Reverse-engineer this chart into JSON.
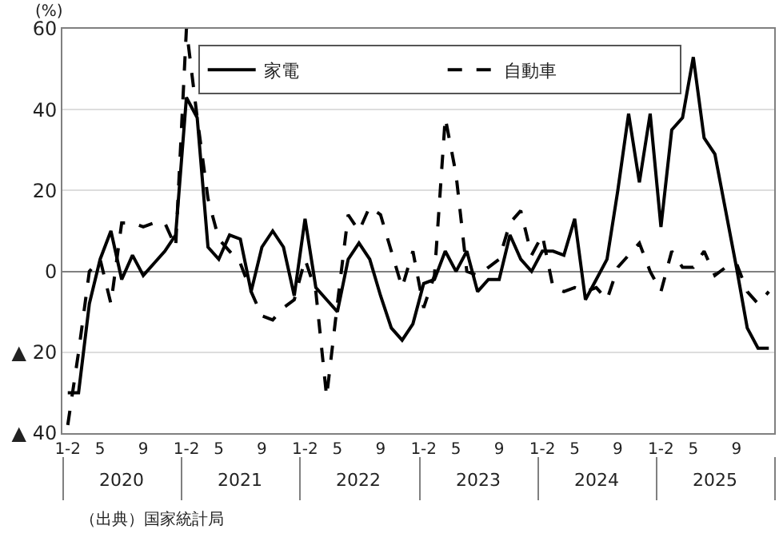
{
  "chart_data": {
    "type": "line",
    "ylabel": "(%)",
    "categories": [
      "1-2",
      null,
      null,
      "5",
      null,
      null,
      null,
      "9",
      null,
      null,
      null,
      "1-2",
      null,
      null,
      "5",
      null,
      null,
      null,
      "9",
      null,
      null,
      null,
      "1-2",
      null,
      null,
      "5",
      null,
      null,
      null,
      "9",
      null,
      null,
      null,
      "1-2",
      null,
      null,
      "5",
      null,
      null,
      null,
      "9",
      null,
      null,
      null,
      "1-2",
      null,
      null,
      "5",
      null,
      null,
      null,
      "9",
      null,
      null,
      null,
      "1-2",
      null,
      null,
      "5",
      null,
      null,
      null,
      "9",
      null,
      null,
      null
    ],
    "series": [
      {
        "name": "家電",
        "color": "#000000",
        "line_style": "solid",
        "values": [
          -30,
          -30,
          -8,
          3,
          10,
          -2,
          4,
          -1,
          2,
          5,
          9,
          43,
          38,
          6,
          3,
          9,
          8,
          -5,
          6,
          10,
          6,
          -6,
          13,
          -4,
          -7,
          -10,
          3,
          7,
          3,
          -6,
          -14,
          -17,
          -13,
          -3,
          -2,
          5,
          0,
          5,
          -5,
          -2,
          -2,
          9,
          3,
          0,
          5,
          5,
          4,
          13,
          -7,
          -2,
          3,
          20,
          39,
          22,
          39,
          11,
          35,
          38,
          53,
          33,
          29,
          15,
          1,
          -14,
          -19,
          -19
        ]
      },
      {
        "name": "自動車",
        "color": "#000000",
        "line_style": "dashed",
        "values": [
          -38,
          -20,
          0,
          3,
          -8,
          12,
          12,
          11,
          12,
          12,
          6,
          60,
          38,
          18,
          8,
          5,
          2,
          -5,
          -11,
          -12,
          -9,
          -7,
          3,
          -5,
          -31,
          -8,
          14,
          10,
          16,
          14,
          5,
          -4,
          5,
          -9,
          -1,
          38,
          24,
          0,
          -1,
          1,
          3,
          12,
          15,
          4,
          9,
          -4,
          -5,
          -4,
          -5,
          -4,
          -7,
          1,
          4,
          7,
          0,
          -5,
          5,
          1,
          1,
          5,
          -1,
          1,
          2,
          -5,
          -8,
          -5
        ]
      }
    ],
    "ylim": [
      -40,
      60
    ],
    "yticks": [
      {
        "value": -40,
        "label": "▲ 40"
      },
      {
        "value": -20,
        "label": "▲ 20"
      },
      0,
      20,
      40,
      60
    ],
    "grid": "y",
    "legend": "top",
    "marker": "none",
    "annotations": [
      "2020",
      "2021",
      "2022",
      "2023",
      "2024",
      "2025",
      "（出典）国家統計局"
    ]
  }
}
